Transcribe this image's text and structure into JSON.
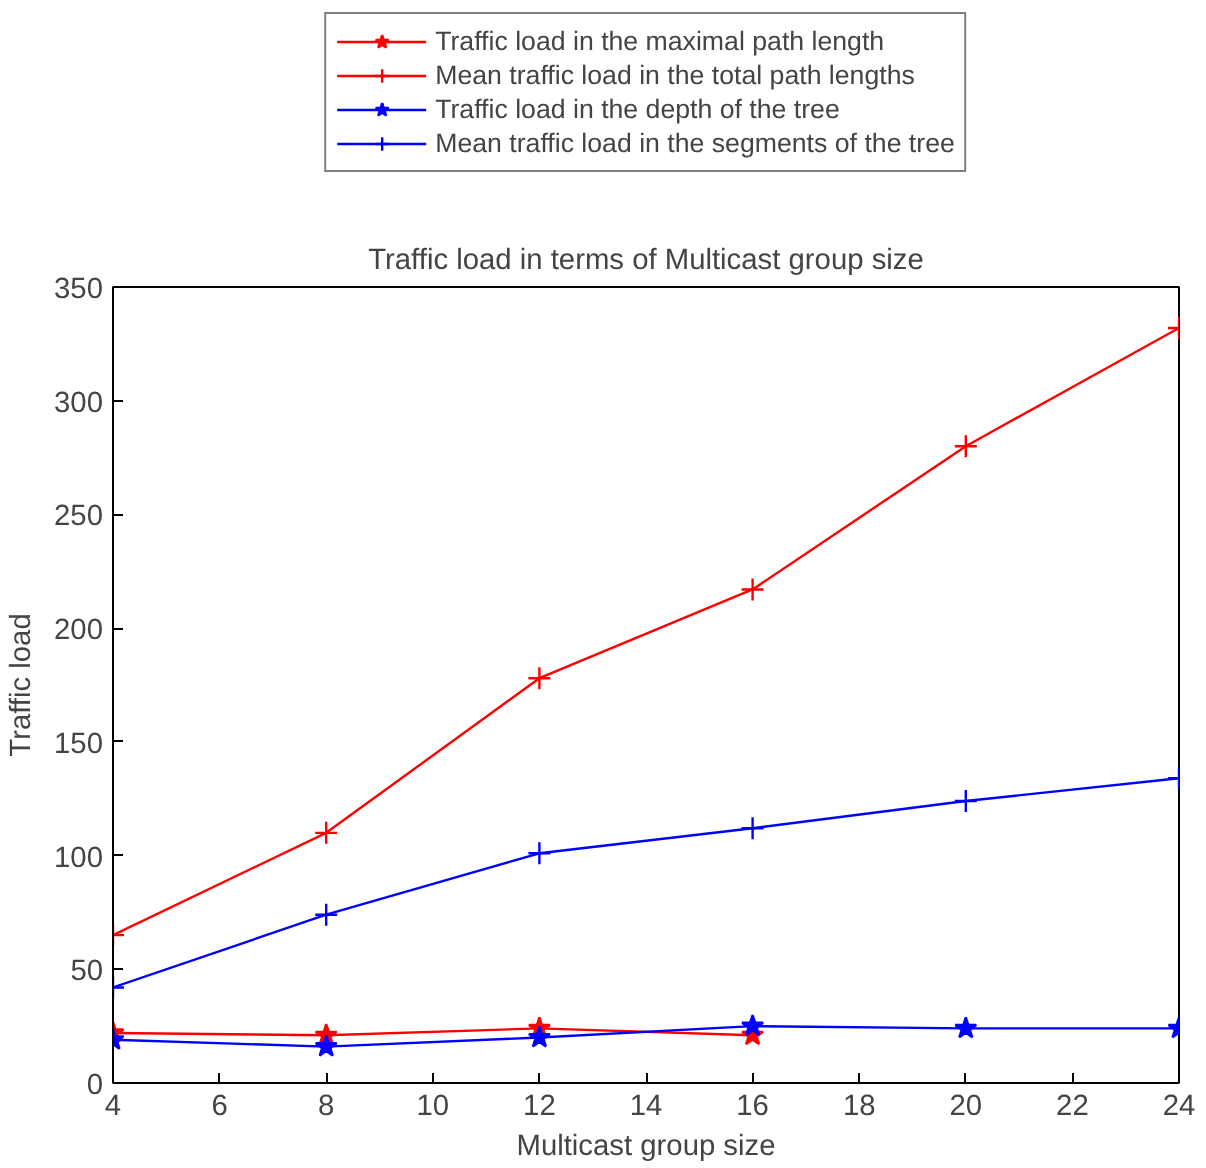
{
  "chart_data": {
    "type": "line",
    "title": "Traffic load in terms of Multicast group size",
    "xlabel": "Multicast group size",
    "ylabel": "Traffic load",
    "x": [
      4,
      8,
      12,
      16,
      20,
      24
    ],
    "series": [
      {
        "name": "Traffic load in the maximal path length",
        "color": "#ff0000",
        "marker": "star",
        "values": [
          22,
          21,
          24,
          21,
          null,
          null
        ]
      },
      {
        "name": "Mean traffic load in the total path lengths",
        "color": "#ff0000",
        "marker": "cross",
        "values": [
          65,
          110,
          178,
          217,
          280,
          332
        ]
      },
      {
        "name": "Traffic load in the depth of the tree",
        "color": "#0000ff",
        "marker": "star",
        "values": [
          19,
          16,
          20,
          25,
          24,
          24
        ]
      },
      {
        "name": "Mean traffic load in the segments of the tree",
        "color": "#0000ff",
        "marker": "cross",
        "values": [
          42,
          74,
          101,
          112,
          124,
          134
        ]
      }
    ],
    "xlim": [
      4,
      24
    ],
    "xticks": [
      4,
      6,
      8,
      10,
      12,
      14,
      16,
      18,
      20,
      22,
      24
    ],
    "ylim": [
      0,
      350
    ],
    "yticks": [
      0,
      50,
      100,
      150,
      200,
      250,
      300,
      350
    ],
    "grid": false,
    "legend": "top",
    "line_style": "solid"
  }
}
